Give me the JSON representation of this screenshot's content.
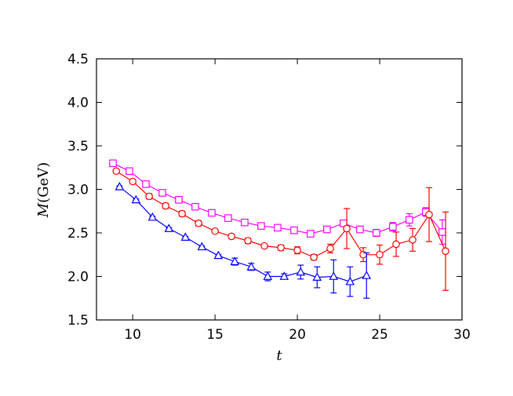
{
  "chart_data": {
    "type": "line",
    "title": "",
    "xlabel": "t",
    "ylabel_symbol": "M",
    "ylabel_unit": "(GeV)",
    "xlim": [
      7.8,
      30
    ],
    "ylim": [
      1.5,
      4.5
    ],
    "x_ticks": [
      10,
      15,
      20,
      25,
      30
    ],
    "y_ticks": [
      1.5,
      2.0,
      2.5,
      3.0,
      3.5,
      4.0,
      4.5
    ],
    "x_tick_labels": [
      "10",
      "15",
      "20",
      "25",
      "30"
    ],
    "y_tick_labels": [
      "1.5",
      "2.0",
      "2.5",
      "3.0",
      "3.5",
      "4.0",
      "4.5"
    ],
    "grid": false,
    "legend": false,
    "series": [
      {
        "marker": "square",
        "color": "#ff00ff",
        "points": [
          {
            "x": 8.8,
            "y": 3.3,
            "err": 0.01
          },
          {
            "x": 9.8,
            "y": 3.21,
            "err": 0.01
          },
          {
            "x": 10.8,
            "y": 3.06,
            "err": 0.01
          },
          {
            "x": 11.8,
            "y": 2.96,
            "err": 0.01
          },
          {
            "x": 12.8,
            "y": 2.88,
            "err": 0.01
          },
          {
            "x": 13.8,
            "y": 2.8,
            "err": 0.01
          },
          {
            "x": 14.8,
            "y": 2.73,
            "err": 0.01
          },
          {
            "x": 15.8,
            "y": 2.67,
            "err": 0.01
          },
          {
            "x": 16.8,
            "y": 2.62,
            "err": 0.01
          },
          {
            "x": 17.8,
            "y": 2.58,
            "err": 0.01
          },
          {
            "x": 18.8,
            "y": 2.56,
            "err": 0.01
          },
          {
            "x": 19.8,
            "y": 2.53,
            "err": 0.01
          },
          {
            "x": 20.8,
            "y": 2.49,
            "err": 0.02
          },
          {
            "x": 21.8,
            "y": 2.54,
            "err": 0.02
          },
          {
            "x": 22.8,
            "y": 2.61,
            "err": 0.03
          },
          {
            "x": 23.8,
            "y": 2.54,
            "err": 0.03
          },
          {
            "x": 24.8,
            "y": 2.5,
            "err": 0.04
          },
          {
            "x": 25.8,
            "y": 2.57,
            "err": 0.05
          },
          {
            "x": 26.8,
            "y": 2.65,
            "err": 0.07
          },
          {
            "x": 27.8,
            "y": 2.74,
            "err": 0.05
          },
          {
            "x": 28.8,
            "y": 2.51,
            "err": 0.14
          }
        ]
      },
      {
        "marker": "circle",
        "color": "#ff0000",
        "points": [
          {
            "x": 9.0,
            "y": 3.21,
            "err": 0.02
          },
          {
            "x": 10.0,
            "y": 3.09,
            "err": 0.02
          },
          {
            "x": 11.0,
            "y": 2.92,
            "err": 0.03
          },
          {
            "x": 12.0,
            "y": 2.81,
            "err": 0.03
          },
          {
            "x": 13.0,
            "y": 2.72,
            "err": 0.03
          },
          {
            "x": 14.0,
            "y": 2.61,
            "err": 0.03
          },
          {
            "x": 15.0,
            "y": 2.52,
            "err": 0.02
          },
          {
            "x": 16.0,
            "y": 2.46,
            "err": 0.02
          },
          {
            "x": 17.0,
            "y": 2.41,
            "err": 0.03
          },
          {
            "x": 18.0,
            "y": 2.35,
            "err": 0.02
          },
          {
            "x": 19.0,
            "y": 2.33,
            "err": 0.03
          },
          {
            "x": 20.0,
            "y": 2.3,
            "err": 0.04
          },
          {
            "x": 21.0,
            "y": 2.22,
            "err": 0.03
          },
          {
            "x": 22.0,
            "y": 2.32,
            "err": 0.05
          },
          {
            "x": 23.0,
            "y": 2.55,
            "err": 0.23
          },
          {
            "x": 24.0,
            "y": 2.25,
            "err": 0.08
          },
          {
            "x": 25.0,
            "y": 2.25,
            "err": 0.11
          },
          {
            "x": 26.0,
            "y": 2.37,
            "err": 0.14
          },
          {
            "x": 27.0,
            "y": 2.42,
            "err": 0.13
          },
          {
            "x": 28.0,
            "y": 2.71,
            "err": 0.31
          },
          {
            "x": 29.0,
            "y": 2.29,
            "err": 0.45
          }
        ]
      },
      {
        "marker": "triangle",
        "color": "#0000ff",
        "points": [
          {
            "x": 9.2,
            "y": 3.03,
            "err": 0.01
          },
          {
            "x": 10.2,
            "y": 2.88,
            "err": 0.01
          },
          {
            "x": 11.2,
            "y": 2.68,
            "err": 0.01
          },
          {
            "x": 12.2,
            "y": 2.55,
            "err": 0.01
          },
          {
            "x": 13.2,
            "y": 2.45,
            "err": 0.01
          },
          {
            "x": 14.2,
            "y": 2.34,
            "err": 0.01
          },
          {
            "x": 15.2,
            "y": 2.24,
            "err": 0.01
          },
          {
            "x": 16.2,
            "y": 2.17,
            "err": 0.04
          },
          {
            "x": 17.2,
            "y": 2.11,
            "err": 0.04
          },
          {
            "x": 18.2,
            "y": 2.0,
            "err": 0.05
          },
          {
            "x": 19.2,
            "y": 2.0,
            "err": 0.03
          },
          {
            "x": 20.2,
            "y": 2.05,
            "err": 0.08
          },
          {
            "x": 21.2,
            "y": 1.99,
            "err": 0.12
          },
          {
            "x": 22.2,
            "y": 2.0,
            "err": 0.19
          },
          {
            "x": 23.2,
            "y": 1.94,
            "err": 0.17
          },
          {
            "x": 24.2,
            "y": 2.01,
            "err": 0.26
          }
        ]
      }
    ]
  }
}
